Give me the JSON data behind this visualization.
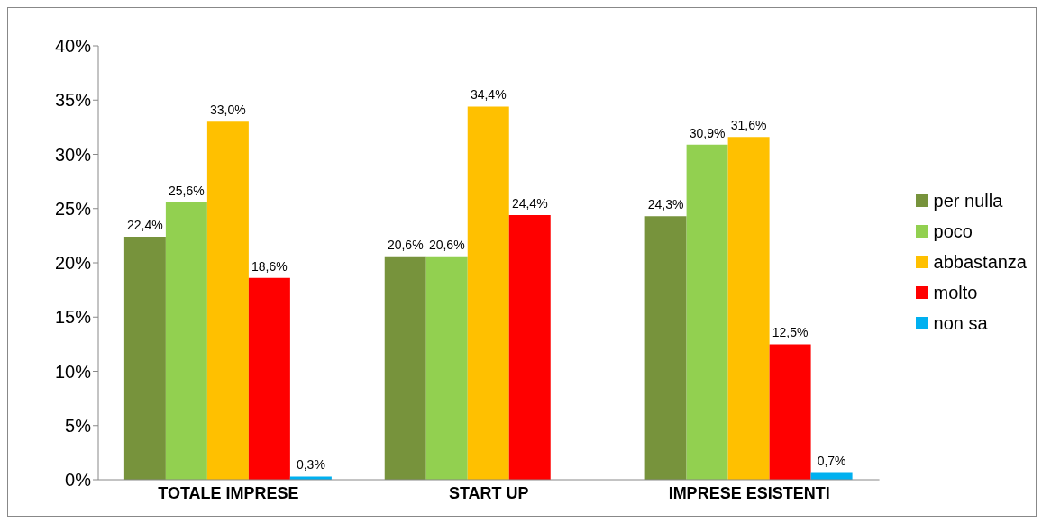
{
  "chart_data": {
    "type": "bar",
    "categories": [
      "TOTALE IMPRESE",
      "START UP",
      "IMPRESE ESISTENTI"
    ],
    "series": [
      {
        "name": "per nulla",
        "color": "#77933c",
        "values": [
          22.4,
          20.6,
          24.3
        ],
        "value_labels": [
          "22,4%",
          "20,6%",
          "24,3%"
        ]
      },
      {
        "name": "poco",
        "color": "#92d050",
        "values": [
          25.6,
          20.6,
          30.9
        ],
        "value_labels": [
          "25,6%",
          "20,6%",
          "30,9%"
        ]
      },
      {
        "name": "abbastanza",
        "color": "#ffc000",
        "values": [
          33.0,
          34.4,
          31.6
        ],
        "value_labels": [
          "33,0%",
          "34,4%",
          "31,6%"
        ]
      },
      {
        "name": "molto",
        "color": "#ff0000",
        "values": [
          18.6,
          24.4,
          12.5
        ],
        "value_labels": [
          "18,6%",
          "24,4%",
          "12,5%"
        ]
      },
      {
        "name": "non sa",
        "color": "#00b0f0",
        "values": [
          0.3,
          null,
          0.7
        ],
        "value_labels": [
          "0,3%",
          null,
          "0,7%"
        ]
      }
    ],
    "ylim": [
      0,
      40
    ],
    "yticks": [
      {
        "value": 0,
        "label": "0%"
      },
      {
        "value": 5,
        "label": "5%"
      },
      {
        "value": 10,
        "label": "10%"
      },
      {
        "value": 15,
        "label": "15%"
      },
      {
        "value": 20,
        "label": "20%"
      },
      {
        "value": 25,
        "label": "25%"
      },
      {
        "value": 30,
        "label": "30%"
      },
      {
        "value": 35,
        "label": "35%"
      },
      {
        "value": 40,
        "label": "40%"
      }
    ],
    "grid": false,
    "legend": "right"
  }
}
